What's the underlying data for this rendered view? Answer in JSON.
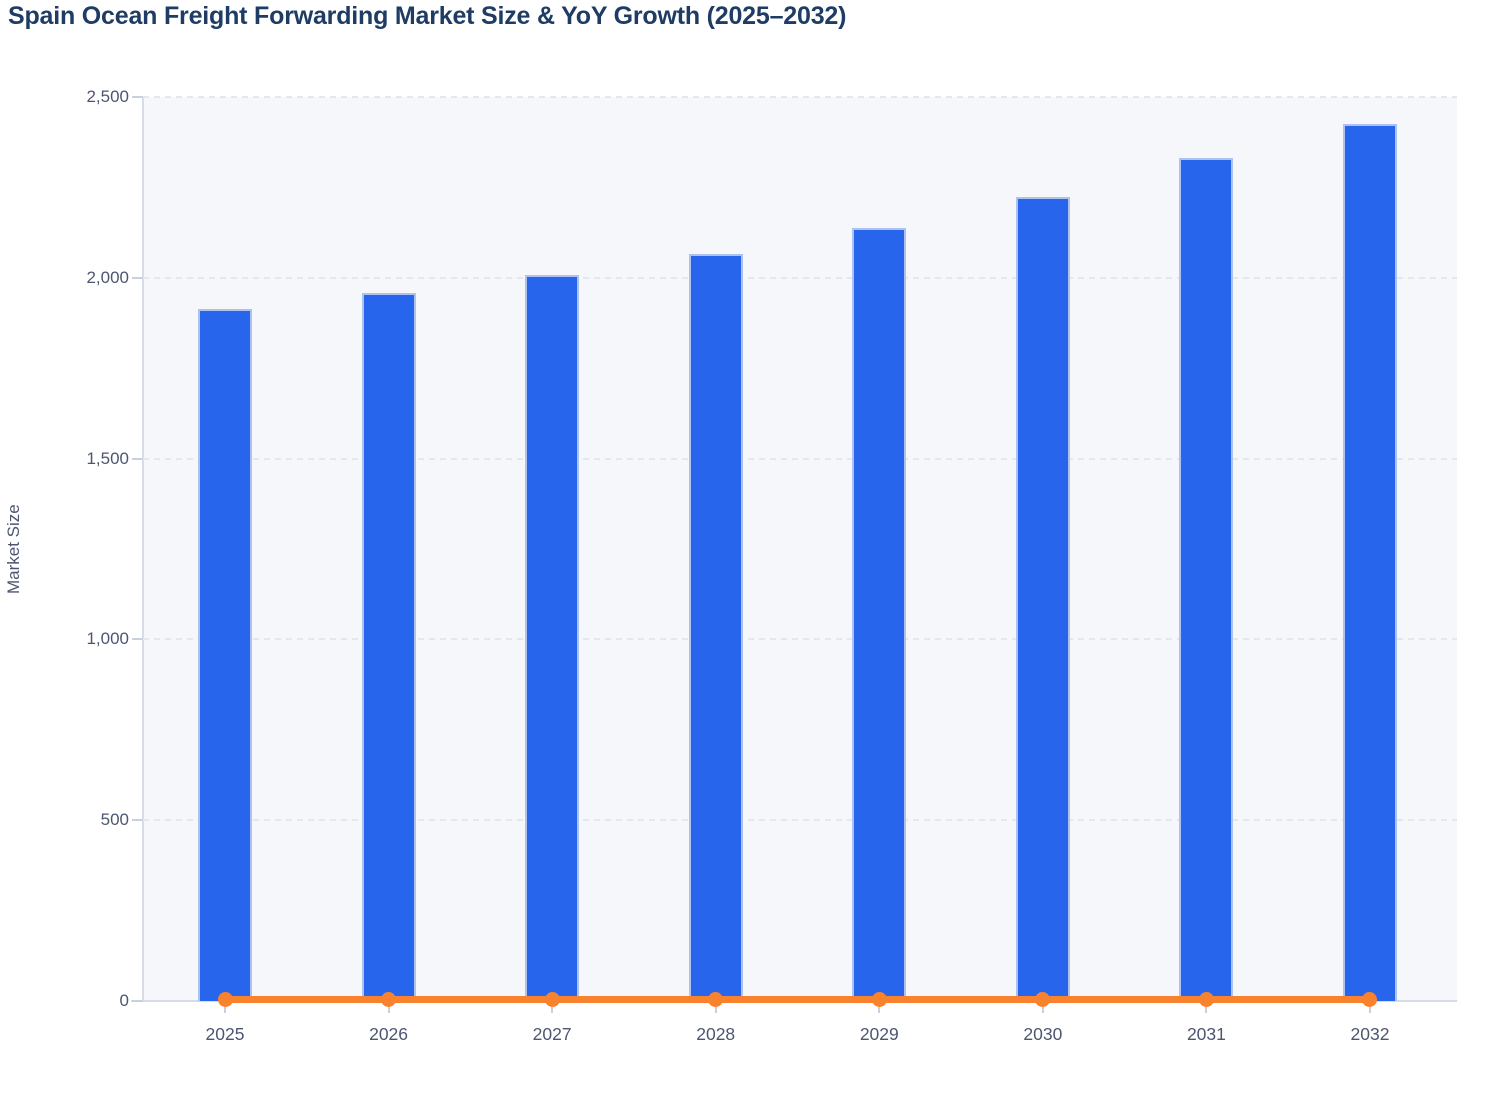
{
  "page": {
    "title": "Spain Ocean Freight Forwarding Market Size & YoY Growth (2025–2032)"
  },
  "chart_data": {
    "type": "bar",
    "title": "Spain Ocean Freight Forwarding Market Size & YoY Growth (2025–2032)",
    "categories": [
      "2025",
      "2026",
      "2027",
      "2028",
      "2029",
      "2030",
      "2031",
      "2032"
    ],
    "series": [
      {
        "name": "Market Size",
        "type": "bar",
        "color": "#2765ec",
        "values": [
          1915,
          1957,
          2008,
          2067,
          2137,
          2224,
          2332,
          2426
        ]
      },
      {
        "name": "YoY Growth",
        "type": "line",
        "color": "#f8822d",
        "values": [
          0,
          0,
          0,
          0,
          0,
          0,
          0,
          0
        ],
        "note": "Orange line with circular markers renders flat at ~0 on the left axis; growth values are not labeled in the image"
      }
    ],
    "xlabel": "",
    "ylabel": "Market Size",
    "ylim": [
      0,
      2500
    ],
    "yticks": {
      "values": [
        0,
        500,
        1000,
        1500,
        2000,
        2500
      ],
      "labels": [
        "0",
        "500",
        "1,000",
        "1,500",
        "2,000",
        "2,500"
      ]
    },
    "grid": "horizontal dashed gridlines, no vertical gridlines",
    "legend": "none"
  },
  "colors": {
    "bar": "#2765ec",
    "line": "#f8822d",
    "title": "#1e3c64",
    "tick_label": "#4c5670",
    "axis_label": "#4c5670",
    "plot_bg": "#f6f7fa",
    "grid": "#e3e7ef",
    "axis_line": "#d6dbe7",
    "tick_mark": "#c8cfdf"
  }
}
